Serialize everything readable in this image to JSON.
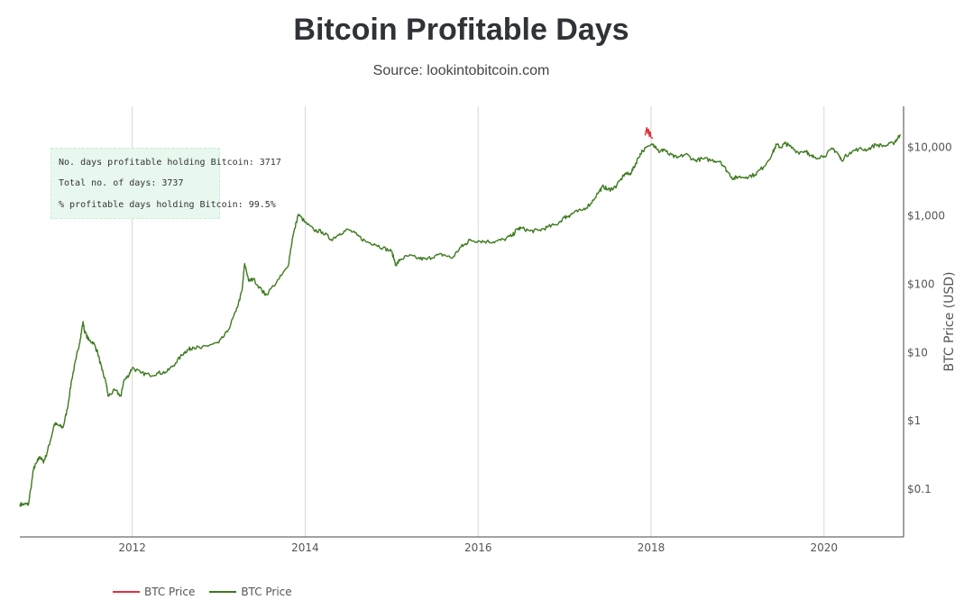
{
  "header": {
    "title": "Bitcoin Profitable Days",
    "subtitle": "Source: lookintobitcoin.com"
  },
  "stats": {
    "line1": "No. days profitable holding Bitcoin: 3717",
    "line2": "Total no. of days: 3737",
    "line3": "% profitable days holding Bitcoin: 99.5%"
  },
  "legend": [
    {
      "label": "BTC Price",
      "color": "#e0303a"
    },
    {
      "label": "BTC Price",
      "color": "#3d7a1e"
    }
  ],
  "chart_data": {
    "type": "line",
    "title": "Bitcoin Profitable Days",
    "subtitle": "Source: lookintobitcoin.com",
    "xlabel": "",
    "ylabel": "BTC Price (USD)",
    "y_scale": "log",
    "x_range": [
      2010.7,
      2020.92
    ],
    "ylim": [
      0.02,
      40000
    ],
    "x_ticks": [
      2012,
      2014,
      2016,
      2018,
      2020
    ],
    "x_tick_labels": [
      "2012",
      "2014",
      "2016",
      "2018",
      "2020"
    ],
    "y_ticks": [
      0.1,
      1,
      10,
      100,
      1000,
      10000
    ],
    "y_tick_labels": [
      "$0.1",
      "$1",
      "$10",
      "$100",
      "$1,000",
      "$10,000"
    ],
    "grid": "vertical",
    "legend_position": "bottom-left",
    "series": [
      {
        "name": "BTC Price",
        "color": "#e0303a",
        "segments": [
          {
            "x": [
              2017.93,
              2017.95,
              2017.96,
              2017.97,
              2017.98,
              2017.99,
              2018.0,
              2018.02
            ],
            "y": [
              15000,
              19500,
              16000,
              18500,
              14500,
              17000,
              14000,
              13500
            ]
          }
        ]
      },
      {
        "name": "BTC Price",
        "color": "#3d7a1e",
        "x": [
          2010.7,
          2010.75,
          2010.8,
          2010.86,
          2010.9,
          2010.93,
          2010.97,
          2011.0,
          2011.05,
          2011.1,
          2011.15,
          2011.2,
          2011.25,
          2011.3,
          2011.35,
          2011.4,
          2011.43,
          2011.45,
          2011.5,
          2011.55,
          2011.6,
          2011.65,
          2011.7,
          2011.72,
          2011.8,
          2011.87,
          2011.9,
          2011.95,
          2012.0,
          2012.1,
          2012.2,
          2012.3,
          2012.4,
          2012.5,
          2012.6,
          2012.65,
          2012.7,
          2012.8,
          2012.9,
          2013.0,
          2013.1,
          2013.2,
          2013.27,
          2013.3,
          2013.35,
          2013.4,
          2013.5,
          2013.55,
          2013.7,
          2013.8,
          2013.85,
          2013.92,
          2014.0,
          2014.1,
          2014.2,
          2014.3,
          2014.4,
          2014.5,
          2014.6,
          2014.7,
          2014.8,
          2014.9,
          2015.0,
          2015.05,
          2015.1,
          2015.2,
          2015.3,
          2015.4,
          2015.5,
          2015.6,
          2015.7,
          2015.8,
          2015.85,
          2015.9,
          2016.0,
          2016.1,
          2016.2,
          2016.3,
          2016.4,
          2016.45,
          2016.5,
          2016.6,
          2016.7,
          2016.8,
          2016.9,
          2017.0,
          2017.05,
          2017.1,
          2017.2,
          2017.3,
          2017.4,
          2017.45,
          2017.5,
          2017.55,
          2017.6,
          2017.7,
          2017.75,
          2017.8,
          2017.85,
          2017.9,
          2018.02,
          2018.05,
          2018.1,
          2018.15,
          2018.2,
          2018.3,
          2018.4,
          2018.5,
          2018.6,
          2018.7,
          2018.8,
          2018.88,
          2018.95,
          2019.0,
          2019.1,
          2019.2,
          2019.3,
          2019.4,
          2019.45,
          2019.5,
          2019.55,
          2019.6,
          2019.7,
          2019.8,
          2019.83,
          2019.9,
          2020.0,
          2020.1,
          2020.15,
          2020.2,
          2020.3,
          2020.4,
          2020.5,
          2020.6,
          2020.7,
          2020.8,
          2020.85,
          2020.88
        ],
        "y": [
          0.06,
          0.06,
          0.06,
          0.2,
          0.25,
          0.3,
          0.25,
          0.3,
          0.5,
          0.9,
          0.85,
          0.8,
          1.5,
          4,
          8,
          16,
          28,
          20,
          15,
          14,
          10,
          5.5,
          3.5,
          2.3,
          2.8,
          2.3,
          3.8,
          4.5,
          6,
          5,
          4.7,
          5,
          5.2,
          7,
          10,
          11,
          12,
          11.5,
          13,
          13.8,
          20,
          40,
          80,
          200,
          110,
          120,
          80,
          70,
          120,
          180,
          450,
          1050,
          800,
          620,
          580,
          450,
          550,
          630,
          520,
          420,
          390,
          340,
          300,
          190,
          230,
          260,
          240,
          230,
          260,
          270,
          240,
          350,
          380,
          440,
          430,
          420,
          420,
          450,
          520,
          640,
          660,
          600,
          610,
          680,
          740,
          950,
          1000,
          1100,
          1200,
          1500,
          2300,
          2700,
          2400,
          2500,
          2700,
          4200,
          4000,
          5000,
          7000,
          9000,
          11000,
          10500,
          8500,
          9500,
          8000,
          7000,
          8000,
          6500,
          6800,
          6500,
          6300,
          4500,
          3500,
          3700,
          3700,
          4000,
          5200,
          8000,
          11000,
          10000,
          11500,
          10500,
          8500,
          9000,
          7500,
          7200,
          7500,
          9500,
          8500,
          6500,
          8500,
          9500,
          9300,
          11000,
          10500,
          11500,
          13500,
          15500
        ]
      }
    ]
  }
}
